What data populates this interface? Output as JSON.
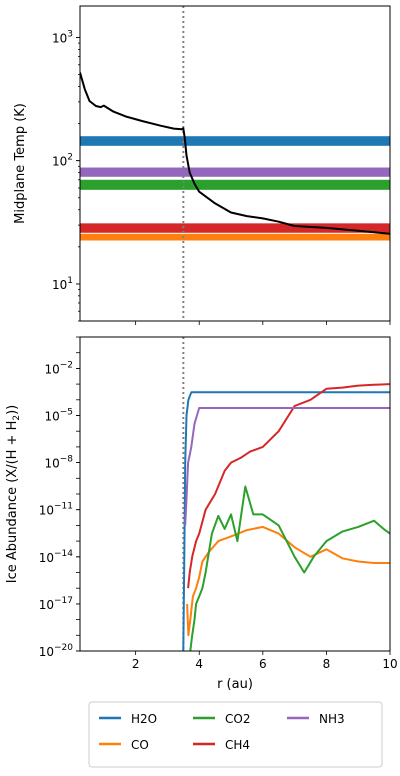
{
  "chart_data": [
    {
      "type": "line",
      "xlabel": "",
      "ylabel": "Midplane Temp (K)",
      "yscale": "log",
      "xlim": [
        0.25,
        10
      ],
      "ylim": [
        5,
        1800
      ],
      "y_tick_labels": [
        {
          "value": 10,
          "base": "10",
          "exp": "1"
        },
        {
          "value": 100,
          "base": "10",
          "exp": "2"
        },
        {
          "value": 1000,
          "base": "10",
          "exp": "3"
        }
      ],
      "vertical_line": {
        "x": 3.5,
        "style": "dotted",
        "color": "#808080"
      },
      "bands": [
        {
          "name": "H2O",
          "y": [
            132,
            158
          ],
          "color": "#1f77b4"
        },
        {
          "name": "NH3",
          "y": [
            74,
            88
          ],
          "color": "#9467bd"
        },
        {
          "name": "CO2",
          "y": [
            58,
            70
          ],
          "color": "#2ca02c"
        },
        {
          "name": "CH4",
          "y": [
            26,
            31
          ],
          "color": "#d62728"
        },
        {
          "name": "CO",
          "y": [
            22.5,
            25.5
          ],
          "color": "#ff7f0e"
        }
      ],
      "series": [
        {
          "color": "#000000",
          "x": [
            0.25,
            0.4,
            0.55,
            0.75,
            0.9,
            1.0,
            1.3,
            1.7,
            2.2,
            2.8,
            3.2,
            3.45,
            3.5,
            3.55,
            3.6,
            3.7,
            3.85,
            4.0,
            4.5,
            5.0,
            5.5,
            6.0,
            6.5,
            7.0,
            8.0,
            9.0,
            10.0
          ],
          "y": [
            520,
            380,
            305,
            278,
            272,
            280,
            250,
            228,
            210,
            192,
            182,
            180,
            183,
            150,
            110,
            80,
            65,
            56,
            45,
            38,
            35.5,
            34,
            32,
            29.5,
            28.5,
            27,
            25.5
          ]
        }
      ]
    },
    {
      "type": "line",
      "xlabel": "r (au)",
      "ylabel": "Ice Abundance (X/(H + H",
      "ylabel_sub": "2",
      "ylabel_end": "))",
      "yscale": "log",
      "xlim": [
        0.25,
        10
      ],
      "ylim": [
        1e-20,
        1
      ],
      "x_tick_labels": [
        {
          "value": 2,
          "text": "2"
        },
        {
          "value": 4,
          "text": "4"
        },
        {
          "value": 6,
          "text": "6"
        },
        {
          "value": 8,
          "text": "8"
        },
        {
          "value": 10,
          "text": "10"
        }
      ],
      "y_tick_labels": [
        {
          "value": 1e-20,
          "base": "10",
          "exp": "−20"
        },
        {
          "value": 1e-17,
          "base": "10",
          "exp": "−17"
        },
        {
          "value": 1e-14,
          "base": "10",
          "exp": "−14"
        },
        {
          "value": 1e-11,
          "base": "10",
          "exp": "−11"
        },
        {
          "value": 1e-08,
          "base": "10",
          "exp": "−8"
        },
        {
          "value": 1e-05,
          "base": "10",
          "exp": "−5"
        },
        {
          "value": 0.01,
          "base": "10",
          "exp": "−2"
        }
      ],
      "vertical_line": {
        "x": 3.5,
        "style": "dotted",
        "color": "#808080"
      },
      "series": [
        {
          "name": "H2O",
          "color": "#1f77b4",
          "x": [
            3.5,
            3.53,
            3.56,
            3.6,
            3.66,
            3.75,
            4.0,
            5.0,
            6.0,
            7.0,
            8.0,
            9.0,
            10.0
          ],
          "y": [
            1e-20,
            1e-14,
            1e-08,
            1e-05,
            0.0001,
            0.0003,
            0.0003,
            0.0003,
            0.0003,
            0.0003,
            0.0003,
            0.0003,
            0.0003
          ]
        },
        {
          "name": "CO",
          "color": "#ff7f0e",
          "x": [
            3.62,
            3.66,
            3.72,
            3.8,
            3.9,
            4.0,
            4.1,
            4.3,
            4.6,
            5.0,
            5.5,
            6.0,
            6.5,
            7.0,
            7.5,
            8.0,
            8.5,
            9.0,
            9.5,
            10.0
          ],
          "y": [
            1e-17,
            1e-19,
            1e-18,
            3e-17,
            1e-16,
            5e-16,
            5e-15,
            2e-14,
            1e-13,
            2e-13,
            5e-13,
            8e-13,
            3e-13,
            4e-14,
            1e-14,
            3e-14,
            8e-15,
            5e-15,
            4e-15,
            4e-15
          ]
        },
        {
          "name": "CO2",
          "color": "#2ca02c",
          "x": [
            3.72,
            3.78,
            3.85,
            3.9,
            4.0,
            4.1,
            4.2,
            4.4,
            4.6,
            4.8,
            5.0,
            5.2,
            5.45,
            5.7,
            6.0,
            6.5,
            7.0,
            7.3,
            7.6,
            8.0,
            8.5,
            9.0,
            9.5,
            9.8,
            10.0
          ],
          "y": [
            1e-20,
            1e-19,
            1e-18,
            1e-17,
            3e-17,
            1e-16,
            1e-15,
            3e-13,
            4e-12,
            6e-13,
            5e-12,
            1e-13,
            3e-10,
            5e-12,
            5e-12,
            1e-12,
            1e-14,
            1e-15,
            1e-14,
            1e-13,
            4e-13,
            8e-13,
            2e-12,
            6e-13,
            3e-13
          ]
        },
        {
          "name": "CH4",
          "color": "#d62728",
          "x": [
            3.65,
            3.7,
            3.78,
            3.9,
            4.0,
            4.2,
            4.5,
            4.8,
            5.0,
            5.3,
            5.6,
            6.0,
            6.5,
            7.0,
            7.5,
            8.0,
            8.5,
            9.0,
            9.5,
            10.0
          ],
          "y": [
            1e-16,
            1e-15,
            1e-14,
            1e-13,
            3e-13,
            1e-11,
            1e-10,
            3e-09,
            1e-08,
            2e-08,
            5e-08,
            1e-07,
            1e-06,
            4e-05,
            0.0001,
            0.0005,
            0.0006,
            0.0008,
            0.0009,
            0.001
          ]
        },
        {
          "name": "NH3",
          "color": "#9467bd",
          "x": [
            3.56,
            3.6,
            3.65,
            3.7,
            3.75,
            3.85,
            4.0,
            5.0,
            6.0,
            7.0,
            8.0,
            9.0,
            10.0
          ],
          "y": [
            1e-12,
            5e-11,
            1e-08,
            3e-08,
            1e-07,
            3e-06,
            3e-05,
            3e-05,
            3e-05,
            3e-05,
            3e-05,
            3e-05,
            3e-05
          ]
        }
      ]
    }
  ],
  "legend": {
    "placement": "bottom",
    "entries": [
      {
        "label": "H2O",
        "color": "#1f77b4"
      },
      {
        "label": "CO2",
        "color": "#2ca02c"
      },
      {
        "label": "NH3",
        "color": "#9467bd"
      },
      {
        "label": "CO",
        "color": "#ff7f0e"
      },
      {
        "label": "CH4",
        "color": "#d62728"
      }
    ]
  }
}
